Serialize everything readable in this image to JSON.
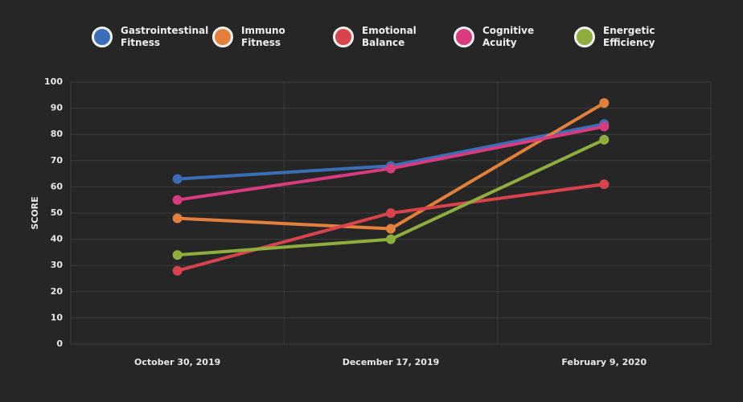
{
  "chart_data": {
    "type": "line",
    "y_label": "SCORE",
    "categories": [
      "October 30, 2019",
      "December 17, 2019",
      "February 9, 2020"
    ],
    "series": [
      {
        "name": "Gastrointestinal Fitness",
        "color": "#3a6fb8",
        "values": [
          63,
          68,
          84
        ]
      },
      {
        "name": "Immuno Fitness",
        "color": "#e3803c",
        "values": [
          48,
          44,
          92
        ]
      },
      {
        "name": "Emotional Balance",
        "color": "#d8434c",
        "values": [
          28,
          50,
          61
        ]
      },
      {
        "name": "Cognitive Acuity",
        "color": "#d93c7e",
        "values": [
          55,
          67,
          83
        ]
      },
      {
        "name": "Energetic Efficiency",
        "color": "#8fae3e",
        "values": [
          34,
          40,
          78
        ]
      }
    ],
    "ylim": [
      0,
      100
    ],
    "yticks": [
      0,
      10,
      20,
      30,
      40,
      50,
      60,
      70,
      80,
      90,
      100
    ],
    "grid": true
  }
}
